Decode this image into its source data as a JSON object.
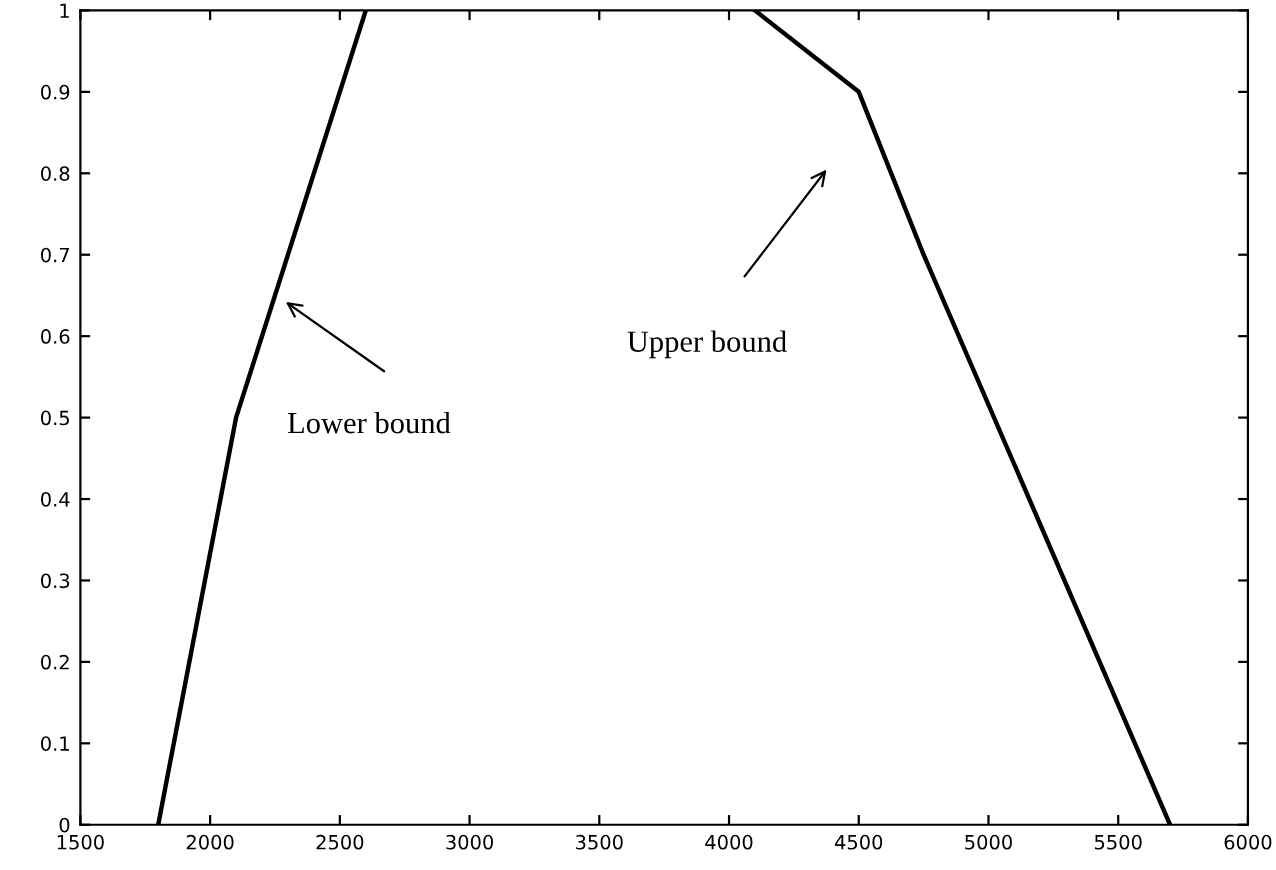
{
  "chart_data": {
    "type": "line",
    "series": [
      {
        "color": "#000000",
        "x": [
          1800,
          2100,
          2600
        ],
        "values": [
          0,
          0.5,
          1
        ]
      },
      {
        "color": "#000000",
        "x": [
          4100,
          4500,
          4750,
          5700
        ],
        "values": [
          1,
          0.9,
          0.7,
          0
        ]
      }
    ],
    "xlim": [
      1500,
      6000
    ],
    "ylim": [
      0,
      1
    ],
    "xticks": [
      1500,
      2000,
      2500,
      3000,
      3500,
      4000,
      4500,
      5000,
      5500,
      6000
    ],
    "yticks": [
      0,
      0.1,
      0.2,
      0.3,
      0.4,
      0.5,
      0.6,
      0.7,
      0.8,
      0.9,
      1
    ],
    "grid": false,
    "legend": false,
    "marker": "none",
    "line_style": "solid",
    "annotations": [
      "Lower bound",
      "Upper bound"
    ]
  }
}
